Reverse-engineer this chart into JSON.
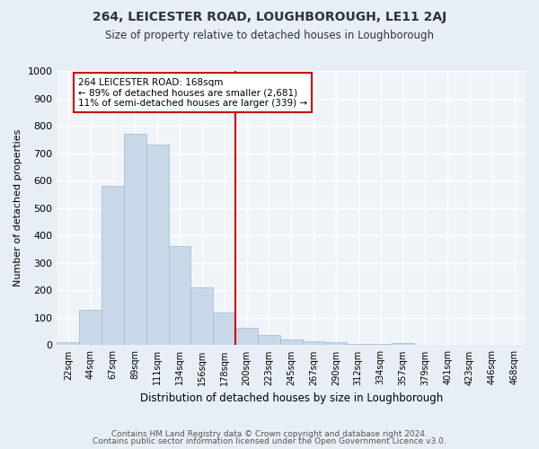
{
  "title": "264, LEICESTER ROAD, LOUGHBOROUGH, LE11 2AJ",
  "subtitle": "Size of property relative to detached houses in Loughborough",
  "xlabel": "Distribution of detached houses by size in Loughborough",
  "ylabel": "Number of detached properties",
  "categories": [
    "22sqm",
    "44sqm",
    "67sqm",
    "89sqm",
    "111sqm",
    "134sqm",
    "156sqm",
    "178sqm",
    "200sqm",
    "223sqm",
    "245sqm",
    "267sqm",
    "290sqm",
    "312sqm",
    "334sqm",
    "357sqm",
    "379sqm",
    "401sqm",
    "423sqm",
    "446sqm",
    "468sqm"
  ],
  "bar_heights": [
    10,
    130,
    580,
    770,
    730,
    360,
    210,
    120,
    65,
    38,
    20,
    15,
    10,
    5,
    5,
    7,
    3,
    3,
    1,
    1,
    0
  ],
  "bar_color": "#c8d8e8",
  "bar_edge_color": "#a0b8cc",
  "vline_index": 7.5,
  "vline_color": "#cc0000",
  "annotation_text": "264 LEICESTER ROAD: 168sqm\n← 89% of detached houses are smaller (2,681)\n11% of semi-detached houses are larger (339) →",
  "annotation_box_color": "#cc0000",
  "ylim": [
    0,
    1000
  ],
  "yticks": [
    0,
    100,
    200,
    300,
    400,
    500,
    600,
    700,
    800,
    900,
    1000
  ],
  "bg_color": "#e8eef5",
  "plot_bg_color": "#f0f4f8",
  "grid_color": "#ffffff",
  "footer1": "Contains HM Land Registry data © Crown copyright and database right 2024.",
  "footer2": "Contains public sector information licensed under the Open Government Licence v3.0."
}
